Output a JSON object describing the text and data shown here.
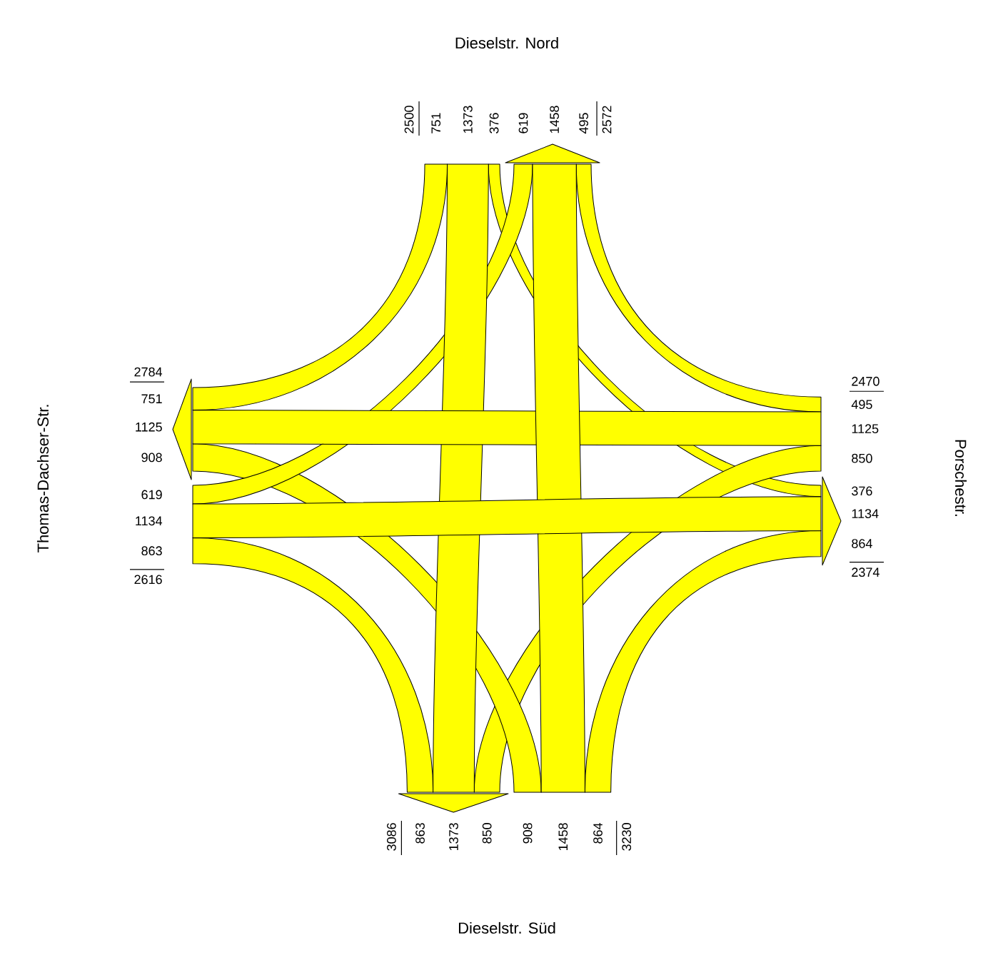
{
  "chart_data": {
    "type": "other",
    "categories": [
      "Dieselstr. Nord",
      "Porschestr.",
      "Dieselstr. Süd",
      "Thomas-Dachser-Str."
    ],
    "series": [
      {
        "color": "#ffff00",
        "values": [
          null,
          376,
          1373,
          751
        ],
        "value_labels": [
          null,
          "376",
          "1373",
          "751"
        ]
      },
      {
        "color": "#ffff00",
        "values": [
          495,
          null,
          850,
          1125
        ],
        "value_labels": [
          "495",
          null,
          "850",
          "1125"
        ]
      },
      {
        "color": "#ffff00",
        "values": [
          1458,
          864,
          null,
          908
        ],
        "value_labels": [
          "1458",
          "864",
          null,
          "908"
        ]
      },
      {
        "color": "#ffff00",
        "values": [
          619,
          1134,
          863,
          null
        ],
        "value_labels": [
          "619",
          "1134",
          "863",
          null
        ]
      }
    ],
    "totals": [
      [
        "2500",
        "2572"
      ],
      [
        "2470",
        "2374"
      ],
      [
        "3230",
        "3086"
      ],
      [
        "2616",
        "2784"
      ]
    ]
  }
}
